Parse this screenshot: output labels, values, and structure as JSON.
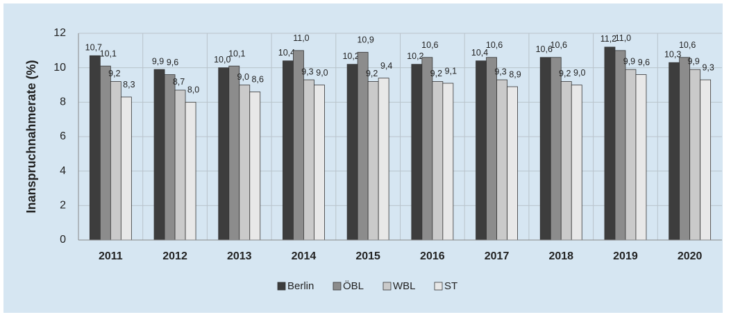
{
  "chart_data": {
    "type": "bar",
    "y_label": "Inanspruchnahmerate (%)",
    "categories": [
      "2011",
      "2012",
      "2013",
      "2014",
      "2015",
      "2016",
      "2017",
      "2018",
      "2019",
      "2020"
    ],
    "series": [
      {
        "name": "Berlin",
        "color": "#3d3d3d",
        "values": [
          10.7,
          9.9,
          10.0,
          10.4,
          10.2,
          10.2,
          10.4,
          10.6,
          11.2,
          10.3
        ],
        "value_labels": [
          "10,7",
          "9,9",
          "10,0",
          "10,4",
          "10,2",
          "10,2",
          "10,4",
          "10,6",
          "11,2",
          "10,3"
        ]
      },
      {
        "name": "ÖBL",
        "color": "#8c8c8c",
        "values": [
          10.1,
          9.6,
          10.1,
          11.0,
          10.9,
          10.6,
          10.6,
          10.6,
          11.0,
          10.6
        ],
        "value_labels": [
          "10,1",
          "9,6",
          "10,1",
          "11,0",
          "10,9",
          "10,6",
          "10,6",
          "10,6",
          "11,0",
          "10,6"
        ]
      },
      {
        "name": "WBL",
        "color": "#cacaca",
        "values": [
          9.2,
          8.7,
          9.0,
          9.3,
          9.2,
          9.2,
          9.3,
          9.2,
          9.9,
          9.9
        ],
        "value_labels": [
          "9,2",
          "8,7",
          "9,0",
          "9,3",
          "9,2",
          "9,2",
          "9,3",
          "9,2",
          "9,9",
          "9,9"
        ]
      },
      {
        "name": "ST",
        "color": "#e8e8e8",
        "values": [
          8.3,
          8.0,
          8.6,
          9.0,
          9.4,
          9.1,
          8.9,
          9.0,
          9.6,
          9.3
        ],
        "value_labels": [
          "8,3",
          "8,0",
          "8,6",
          "9,0",
          "9,4",
          "9,1",
          "8,9",
          "9,0",
          "9,6",
          "9,3"
        ]
      }
    ],
    "ylim": [
      0,
      12
    ],
    "yticks": [
      0,
      2,
      4,
      6,
      8,
      10,
      12
    ],
    "grid": true,
    "legend": "bottom"
  }
}
